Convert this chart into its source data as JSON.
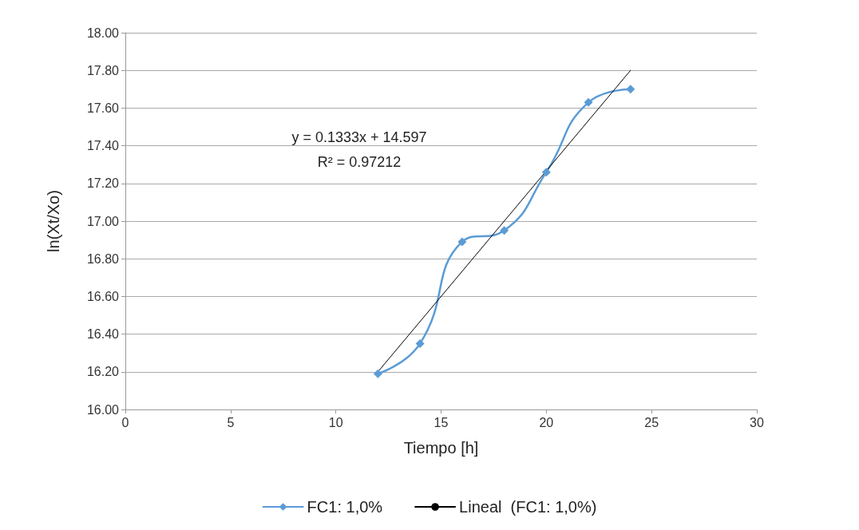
{
  "chart_data": {
    "type": "line",
    "xlabel": "Tiempo [h]",
    "ylabel": "ln(Xt/Xo)",
    "xlim": [
      0,
      30
    ],
    "xticks": [
      0,
      5,
      10,
      15,
      20,
      25,
      30
    ],
    "ylim": [
      16,
      18
    ],
    "yticks": [
      {
        "value": 16,
        "label": "16.00"
      },
      {
        "value": 16.2,
        "label": "16.20"
      },
      {
        "value": 16.4,
        "label": "16.40"
      },
      {
        "value": 16.6,
        "label": "16.60"
      },
      {
        "value": 16.8,
        "label": "16.80"
      },
      {
        "value": 17,
        "label": "17.00"
      },
      {
        "value": 17.2,
        "label": "17.20"
      },
      {
        "value": 17.4,
        "label": "17.40"
      },
      {
        "value": 17.6,
        "label": "17.60"
      },
      {
        "value": 17.8,
        "label": "17.80"
      },
      {
        "value": 18,
        "label": "18.00"
      }
    ],
    "grid": "y",
    "legend": "bottom",
    "x": [
      12,
      14,
      16,
      18,
      20,
      22,
      24
    ],
    "series": [
      {
        "name": "FC1: 1,0%",
        "color": "#5b9bd5",
        "marker": "diamond",
        "values": [
          16.19,
          16.35,
          16.89,
          16.95,
          17.26,
          17.63,
          17.7
        ]
      },
      {
        "name": "Lineal  (FC1: 1,0%)",
        "color": "#000000",
        "marker": "none",
        "x": [
          12,
          24
        ],
        "values": [
          16.2,
          17.8
        ]
      }
    ],
    "annotations": [
      "y = 0.1333x + 14.597",
      "R² = 0.97212"
    ]
  }
}
